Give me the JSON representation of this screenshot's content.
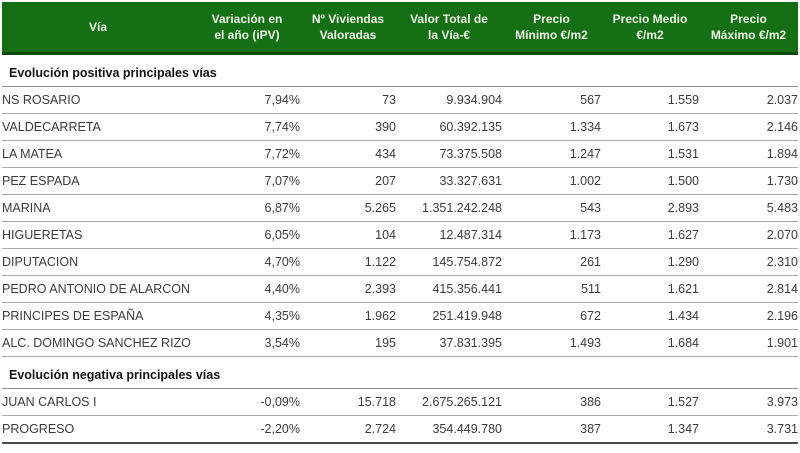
{
  "chart_data": {
    "type": "table",
    "columns": [
      {
        "id": "via",
        "lines": [
          "Vía"
        ]
      },
      {
        "id": "variacion",
        "lines": [
          "Variación en",
          "el año (iPV)"
        ]
      },
      {
        "id": "viviendas",
        "lines": [
          "Nº Viviendas",
          "Valoradas"
        ]
      },
      {
        "id": "valor_total",
        "lines": [
          "Valor Total de",
          "la Vía-€"
        ]
      },
      {
        "id": "precio_min",
        "lines": [
          "Precio",
          "Mínimo €/m2"
        ]
      },
      {
        "id": "precio_medio",
        "lines": [
          "Precio Medio",
          "€/m2"
        ]
      },
      {
        "id": "precio_max",
        "lines": [
          "Precio",
          "Máximo €/m2"
        ]
      }
    ],
    "sections": [
      {
        "title": "Evolución positiva principales vías",
        "rows": [
          {
            "via": "NS ROSARIO",
            "variacion": "7,94%",
            "viviendas": "73",
            "valor_total": "9.934.904",
            "precio_min": "567",
            "precio_medio": "1.559",
            "precio_max": "2.037"
          },
          {
            "via": "VALDECARRETA",
            "variacion": "7,74%",
            "viviendas": "390",
            "valor_total": "60.392.135",
            "precio_min": "1.334",
            "precio_medio": "1.673",
            "precio_max": "2.146"
          },
          {
            "via": "LA MATEA",
            "variacion": "7,72%",
            "viviendas": "434",
            "valor_total": "73.375.508",
            "precio_min": "1.247",
            "precio_medio": "1.531",
            "precio_max": "1.894"
          },
          {
            "via": "PEZ ESPADA",
            "variacion": "7,07%",
            "viviendas": "207",
            "valor_total": "33.327.631",
            "precio_min": "1.002",
            "precio_medio": "1.500",
            "precio_max": "1.730"
          },
          {
            "via": "MARINA",
            "variacion": "6,87%",
            "viviendas": "5.265",
            "valor_total": "1.351.242.248",
            "precio_min": "543",
            "precio_medio": "2.893",
            "precio_max": "5.483"
          },
          {
            "via": "HIGUERETAS",
            "variacion": "6,05%",
            "viviendas": "104",
            "valor_total": "12.487.314",
            "precio_min": "1.173",
            "precio_medio": "1.627",
            "precio_max": "2.070"
          },
          {
            "via": "DIPUTACION",
            "variacion": "4,70%",
            "viviendas": "1.122",
            "valor_total": "145.754.872",
            "precio_min": "261",
            "precio_medio": "1.290",
            "precio_max": "2.310"
          },
          {
            "via": "PEDRO ANTONIO DE ALARCON",
            "variacion": "4,40%",
            "viviendas": "2.393",
            "valor_total": "415.356.441",
            "precio_min": "511",
            "precio_medio": "1.621",
            "precio_max": "2.814"
          },
          {
            "via": "PRINCIPES DE ESPAÑA",
            "variacion": "4,35%",
            "viviendas": "1.962",
            "valor_total": "251.419.948",
            "precio_min": "672",
            "precio_medio": "1.434",
            "precio_max": "2.196"
          },
          {
            "via": "ALC. DOMINGO SANCHEZ RIZO",
            "variacion": "3,54%",
            "viviendas": "195",
            "valor_total": "37.831.395",
            "precio_min": "1.493",
            "precio_medio": "1.684",
            "precio_max": "1.901"
          }
        ]
      },
      {
        "title": "Evolución negativa principales vías",
        "rows": [
          {
            "via": "JUAN CARLOS I",
            "variacion": "-0,09%",
            "viviendas": "15.718",
            "valor_total": "2.675.265.121",
            "precio_min": "386",
            "precio_medio": "1.527",
            "precio_max": "3.973"
          },
          {
            "via": "PROGRESO",
            "variacion": "-2,20%",
            "viviendas": "2.724",
            "valor_total": "354.449.780",
            "precio_min": "387",
            "precio_medio": "1.347",
            "precio_max": "3.731"
          }
        ]
      }
    ],
    "layout": {
      "header_bg": "#156f15",
      "header_edge": "#0b4a0b",
      "header_text": "#edf5e6",
      "body_text": "#3b3b3b",
      "row_border": "#a9a9a9",
      "section_border": "#8c8c8c",
      "bottom_border": "#4a4a4a"
    }
  }
}
